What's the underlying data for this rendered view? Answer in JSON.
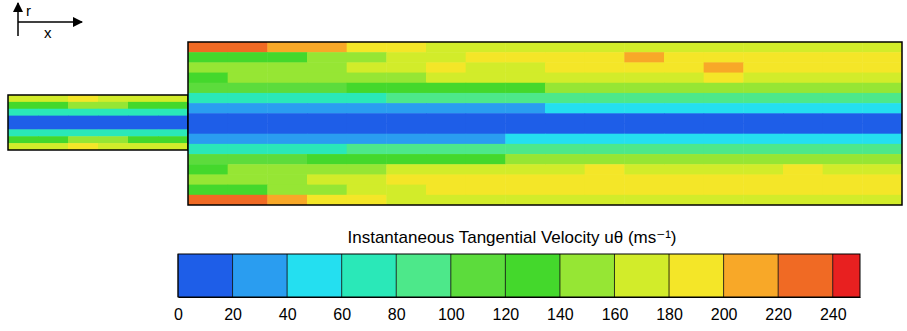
{
  "chart_data": {
    "type": "contour",
    "title": "Instantaneous Tangential Velocity uθ (ms⁻¹)",
    "xlabel": "x",
    "ylabel": "r",
    "tick_labels": false,
    "inlet_cells": [
      [
        160,
        170,
        180,
        170,
        170,
        160
      ],
      [
        120,
        130,
        140,
        140,
        130,
        120
      ],
      [
        60,
        60,
        70,
        70,
        60,
        60
      ],
      [
        10,
        10,
        10,
        10,
        10,
        10
      ],
      [
        10,
        10,
        10,
        10,
        10,
        10
      ],
      [
        60,
        60,
        70,
        70,
        60,
        60
      ],
      [
        120,
        130,
        140,
        140,
        130,
        120
      ],
      [
        160,
        170,
        180,
        170,
        160,
        160
      ]
    ],
    "chamber_cells": [
      [
        230,
        220,
        210,
        200,
        190,
        180,
        170,
        170,
        160,
        170,
        170,
        170,
        160,
        170,
        170,
        160,
        170,
        160
      ],
      [
        130,
        120,
        130,
        140,
        150,
        160,
        170,
        180,
        190,
        180,
        190,
        200,
        180,
        190,
        180,
        190,
        180,
        180
      ],
      [
        150,
        150,
        150,
        150,
        160,
        170,
        190,
        170,
        170,
        190,
        180,
        180,
        190,
        200,
        180,
        180,
        190,
        180
      ],
      [
        130,
        140,
        140,
        150,
        150,
        150,
        160,
        160,
        170,
        170,
        170,
        170,
        170,
        180,
        170,
        170,
        170,
        170
      ],
      [
        100,
        100,
        110,
        110,
        120,
        120,
        130,
        130,
        130,
        140,
        140,
        140,
        140,
        140,
        140,
        140,
        140,
        140
      ],
      [
        60,
        60,
        70,
        70,
        70,
        80,
        80,
        80,
        80,
        90,
        90,
        90,
        90,
        90,
        90,
        90,
        90,
        90
      ],
      [
        30,
        30,
        30,
        30,
        30,
        30,
        30,
        30,
        30,
        40,
        40,
        40,
        40,
        40,
        40,
        40,
        40,
        40
      ],
      [
        10,
        10,
        10,
        10,
        10,
        10,
        10,
        10,
        10,
        10,
        10,
        10,
        10,
        10,
        10,
        10,
        10,
        10
      ],
      [
        10,
        10,
        10,
        10,
        10,
        10,
        10,
        10,
        10,
        10,
        10,
        10,
        10,
        10,
        10,
        10,
        10,
        10
      ],
      [
        30,
        30,
        30,
        30,
        30,
        30,
        30,
        30,
        40,
        40,
        40,
        40,
        40,
        40,
        40,
        40,
        40,
        40
      ],
      [
        60,
        60,
        70,
        70,
        80,
        80,
        80,
        90,
        90,
        90,
        90,
        90,
        90,
        90,
        90,
        90,
        90,
        90
      ],
      [
        100,
        110,
        110,
        120,
        120,
        130,
        130,
        130,
        140,
        140,
        140,
        140,
        140,
        140,
        140,
        140,
        140,
        140
      ],
      [
        130,
        140,
        150,
        150,
        150,
        160,
        170,
        170,
        170,
        170,
        180,
        170,
        170,
        170,
        170,
        180,
        170,
        170
      ],
      [
        150,
        150,
        150,
        160,
        170,
        180,
        180,
        190,
        180,
        180,
        190,
        180,
        190,
        180,
        190,
        180,
        180,
        190
      ],
      [
        130,
        130,
        140,
        150,
        160,
        170,
        180,
        190,
        180,
        190,
        180,
        190,
        180,
        190,
        180,
        180,
        190,
        180
      ],
      [
        230,
        220,
        200,
        190,
        180,
        170,
        160,
        170,
        160,
        170,
        160,
        170,
        170,
        160,
        170,
        170,
        160,
        170
      ]
    ],
    "colorbar": {
      "range": [
        0,
        250
      ],
      "ticks": [
        0,
        20,
        40,
        60,
        80,
        100,
        120,
        140,
        160,
        180,
        200,
        220,
        240
      ],
      "colors": [
        "#1e5ee8",
        "#2a9df0",
        "#24dff0",
        "#2ae8b8",
        "#4de88a",
        "#5cdc3c",
        "#44d82c",
        "#96e634",
        "#d2ec2a",
        "#f4e628",
        "#f8a828",
        "#f06a24",
        "#e82020"
      ]
    }
  }
}
